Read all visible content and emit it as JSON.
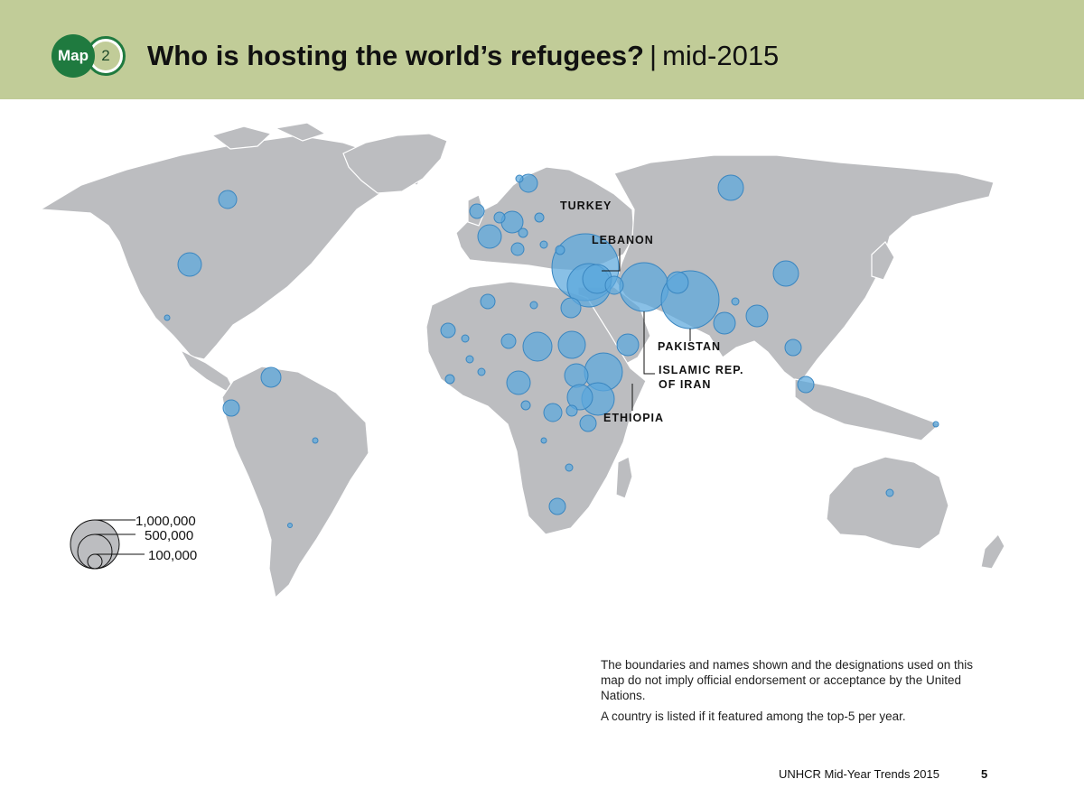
{
  "header": {
    "badge_map": "Map",
    "badge_number": "2",
    "title": "Who is hosting the world’s refugees?",
    "separator": "|",
    "subtitle": "mid-2015"
  },
  "map": {
    "land_color": "#bcbdc0",
    "border_color": "#ffffff",
    "bubble_color": "#5ba8dc",
    "callouts": [
      {
        "id": "turkey",
        "label": "TURKEY"
      },
      {
        "id": "lebanon",
        "label": "LEBANON"
      },
      {
        "id": "pakistan",
        "label": "PAKISTAN"
      },
      {
        "id": "iran",
        "label_lines": [
          "ISLAMIC REP.",
          "OF IRAN"
        ]
      },
      {
        "id": "ethiopia",
        "label": "ETHIOPIA"
      }
    ],
    "legend": {
      "labels": [
        "1,000,000",
        "500,000",
        "100,000"
      ]
    }
  },
  "disclaimer": {
    "line1": "The boundaries and names shown and the designations used on this map do not imply official endorsement or acceptance by the United Nations.",
    "line2": "A country is listed if it featured among the top-5 per year."
  },
  "footer": {
    "source": "UNHCR Mid-Year Trends 2015",
    "page": "5"
  }
}
